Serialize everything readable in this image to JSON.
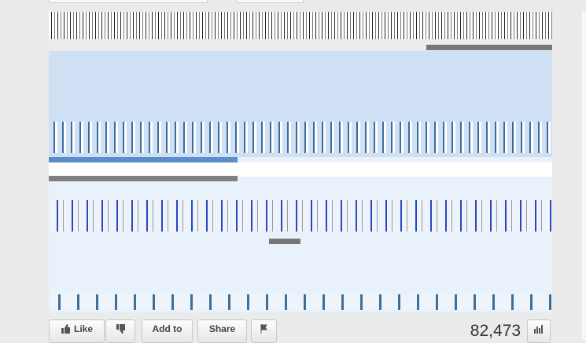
{
  "actions": {
    "like": "Like",
    "add_to": "Add to",
    "share": "Share"
  },
  "view_count": "82,473"
}
